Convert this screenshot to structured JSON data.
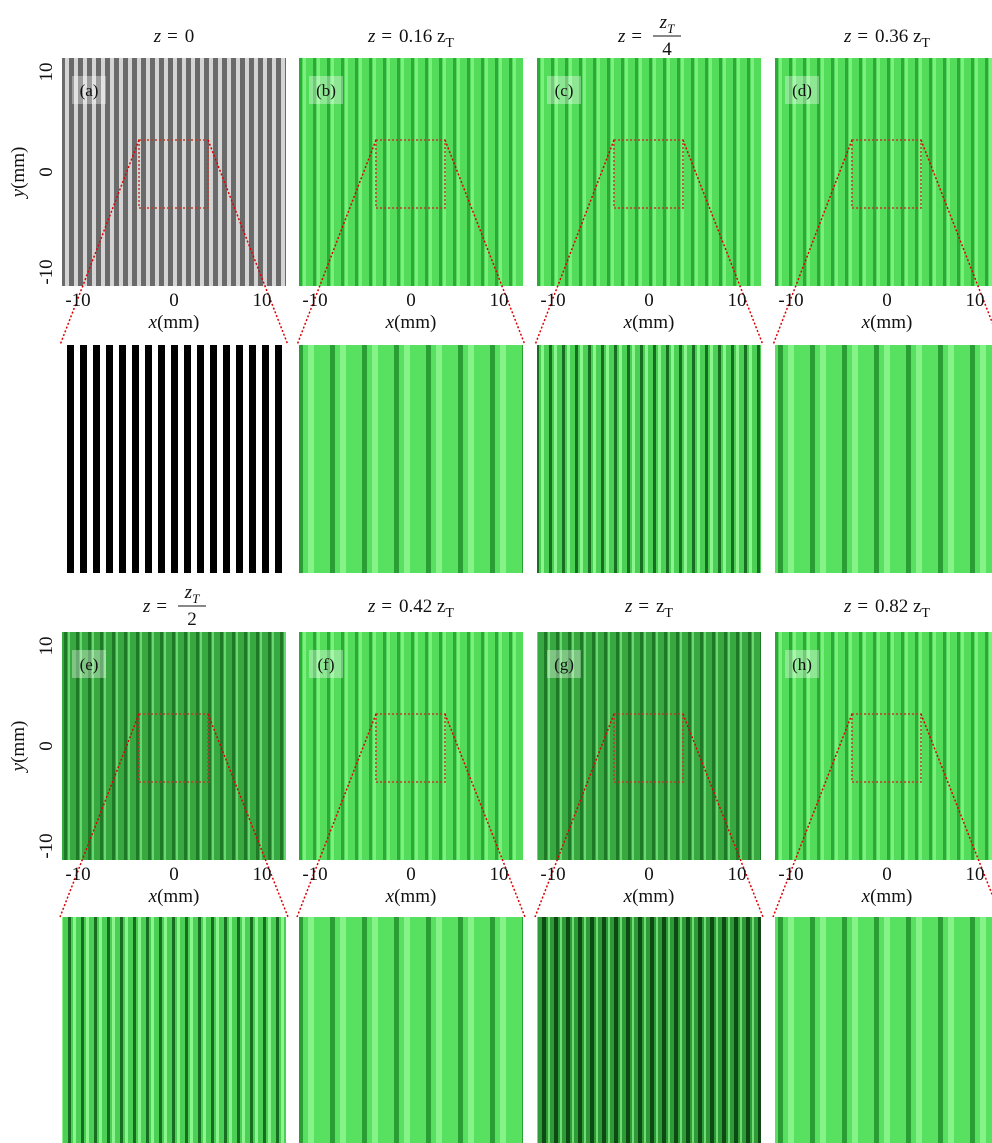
{
  "axis_labels": {
    "x_var": "x",
    "x_unit": "(mm)",
    "y_var": "y",
    "y_unit": "(mm)"
  },
  "ticks": {
    "x": [
      "-10",
      "0",
      "10"
    ],
    "y": [
      "10",
      "0",
      "-10"
    ]
  },
  "panels": [
    {
      "label": "(a)",
      "title": {
        "lhs": "z =",
        "value": "0"
      }
    },
    {
      "label": "(b)",
      "title": {
        "lhs": "z =",
        "value": "0.16 z",
        "sub": "T"
      }
    },
    {
      "label": "(c)",
      "title": {
        "lhs": "z =",
        "num": "z",
        "num_sub": "T",
        "den": "4"
      }
    },
    {
      "label": "(d)",
      "title": {
        "lhs": "z =",
        "value": "0.36 z",
        "sub": "T"
      }
    },
    {
      "label": "(e)",
      "title": {
        "lhs": "z =",
        "num": "z",
        "num_sub": "T",
        "den": "2"
      }
    },
    {
      "label": "(f)",
      "title": {
        "lhs": "z =",
        "value": "0.42 z",
        "sub": "T"
      }
    },
    {
      "label": "(g)",
      "title": {
        "lhs": "z =",
        "value": "z",
        "sub": "T"
      }
    },
    {
      "label": "(h)",
      "title": {
        "lhs": "z =",
        "value": "0.82 z",
        "sub": "T"
      }
    }
  ]
}
